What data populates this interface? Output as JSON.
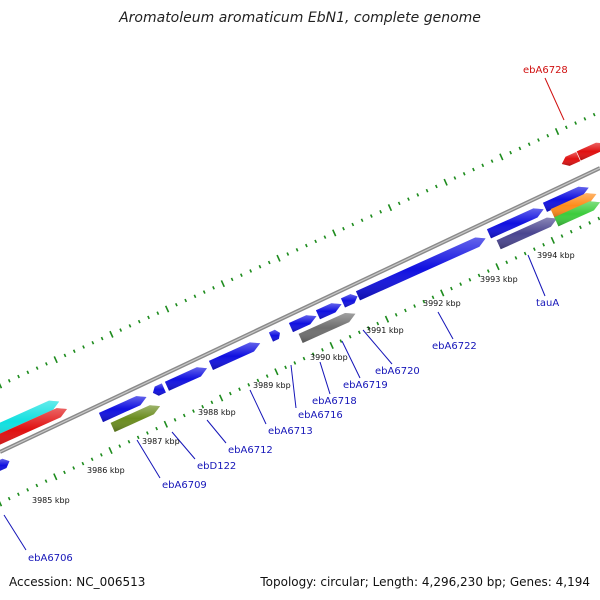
{
  "title": "Aromatoleum aromaticum EbN1, complete genome",
  "footer": {
    "accession": "Accession: NC_006513",
    "summary": "Topology: circular; Length: 4,296,230 bp; Genes: 4,194"
  },
  "colors": {
    "blue": "#1010e0",
    "red": "#e01010",
    "cyan": "#10e0e0",
    "olive": "#6a8c1e",
    "gray": "#6e6e6e",
    "slate": "#4a4590",
    "orange": "#ff8c1a",
    "green": "#3ccc3c",
    "backbone": "#8a8a8a",
    "tick": "#1e8c1e",
    "label_blue": "#1515b8",
    "label_red": "#d01010"
  },
  "kbp_ticks": [
    "3985 kbp",
    "3986 kbp",
    "3987 kbp",
    "3988 kbp",
    "3989 kbp",
    "3990 kbp",
    "3991 kbp",
    "3992 kbp",
    "3993 kbp",
    "3994 kbp"
  ],
  "gene_labels": [
    {
      "text": "ebA6706",
      "color": "blue"
    },
    {
      "text": "ebA6709",
      "color": "blue"
    },
    {
      "text": "ebD122",
      "color": "blue"
    },
    {
      "text": "ebA6712",
      "color": "blue"
    },
    {
      "text": "ebA6713",
      "color": "blue"
    },
    {
      "text": "ebA6716",
      "color": "blue"
    },
    {
      "text": "ebA6718",
      "color": "blue"
    },
    {
      "text": "ebA6719",
      "color": "blue"
    },
    {
      "text": "ebA6720",
      "color": "blue"
    },
    {
      "text": "ebA6722",
      "color": "blue"
    },
    {
      "text": "tauA",
      "color": "blue"
    },
    {
      "text": "ebA6728",
      "color": "red"
    }
  ]
}
